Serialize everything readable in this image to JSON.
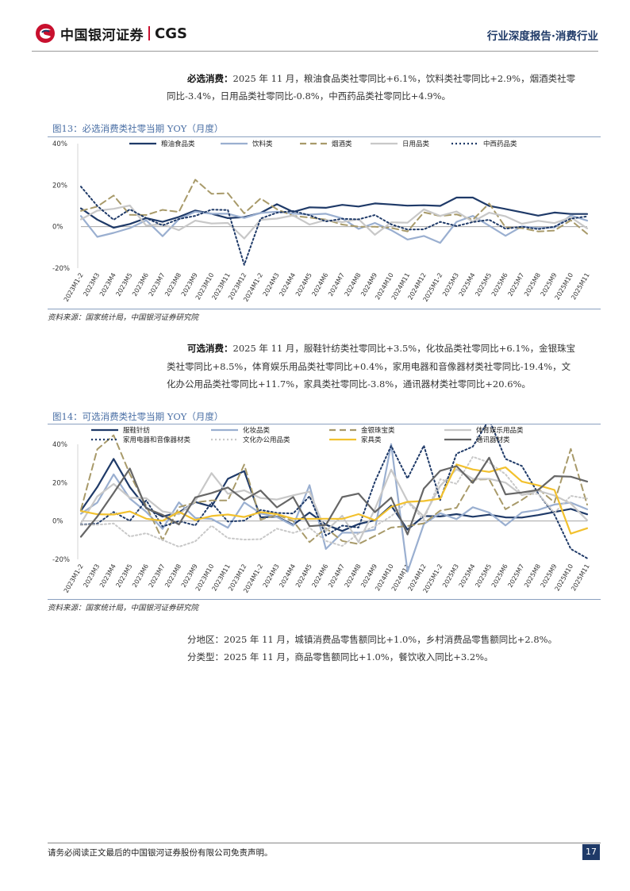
{
  "header": {
    "brand_cn": "中国银河证券",
    "brand_en": "CGS",
    "report_tag": "行业深度报告·消费行业"
  },
  "section1": {
    "bold": "必选消费：",
    "line1": "2025 年 11 月，粮油食品类社零同比+6.1%，饮料类社零同比+2.9%，烟酒类社零",
    "line2": "同比-3.4%，日用品类社零同比-0.8%，中西药品类社零同比+4.9%。"
  },
  "fig13": {
    "title": "图13：必选消费类社零当期 YOY（月度）",
    "source": "资料来源：国家统计局，中国银河证券研究院"
  },
  "section2": {
    "bold": "可选消费：",
    "line1": "2025 年 11 月，服鞋针纺类社零同比+3.5%，化妆品类社零同比+6.1%，金银珠宝",
    "line2": "类社零同比+8.5%，体育娱乐用品类社零同比+0.4%，家用电器和音像器材类社零同比-19.4%，文",
    "line3": "化办公用品类社零同比+11.7%，家具类社零同比-3.8%，通讯器材类社零同比+20.6%。"
  },
  "fig14": {
    "title": "图14：可选消费类社零当期 YOY（月度）",
    "source": "资料来源：国家统计局，中国银河证券研究院"
  },
  "section3": {
    "line1": "分地区：2025 年 11 月，城镇消费品零售额同比+1.0%，乡村消费品零售额同比+2.8%。",
    "line2": "分类型：2025 年 11 月，商品零售额同比+1.0%，餐饮收入同比+3.2%。"
  },
  "footer": {
    "disclaimer": "请务必阅读正文最后的中国银河证券股份有限公司免责声明。",
    "page": "17"
  },
  "chart_data": [
    {
      "type": "line",
      "title": "图13：必选消费类社零当期 YOY（月度）",
      "ylim": [
        -20,
        40
      ],
      "yticks": [
        "40%",
        "20%",
        "0%",
        "-20%"
      ],
      "categories": [
        "2023M1-2",
        "2023M3",
        "2023M4",
        "2023M5",
        "2023M6",
        "2023M7",
        "2023M8",
        "2023M9",
        "2023M10",
        "2023M11",
        "2023M12",
        "2024M1-2",
        "2024M3",
        "2024M4",
        "2024M5",
        "2024M6",
        "2024M7",
        "2024M8",
        "2024M9",
        "2024M10",
        "2024M11",
        "2024M12",
        "2025M1-2",
        "2025M3",
        "2025M4",
        "2025M5",
        "2025M6",
        "2025M7",
        "2025M8",
        "2025M9",
        "2025M10",
        "2025M11"
      ],
      "series": [
        {
          "name": "粮油食品类",
          "color": "#1f3a68",
          "dash": "solid",
          "values": [
            8.8,
            3.4,
            -0.5,
            1.3,
            4.1,
            2.3,
            4.7,
            7.8,
            6.2,
            4.1,
            4.6,
            6.6,
            10.8,
            7.1,
            9.3,
            9.1,
            10.5,
            9.7,
            11.2,
            10.7,
            10.1,
            10.3,
            10.0,
            14.0,
            14.0,
            10.0,
            8.5,
            6.9,
            5.3,
            6.8,
            6.1,
            6.1
          ]
        },
        {
          "name": "饮料类",
          "color": "#9aafd0",
          "dash": "solid",
          "values": [
            5.1,
            -4.9,
            -3.0,
            -0.7,
            3.1,
            -4.6,
            3.6,
            7.2,
            6.2,
            6.2,
            4.2,
            6.6,
            7.2,
            6.3,
            5.8,
            6.2,
            4.0,
            -1.1,
            1.8,
            -1.7,
            -6.2,
            -4.5,
            -7.8,
            2.3,
            5.2,
            0.5,
            -4.4,
            0.1,
            -0.7,
            -0.4,
            5.4,
            2.9
          ]
        },
        {
          "name": "烟酒类",
          "color": "#a89a6a",
          "dash": "8,5",
          "values": [
            7.6,
            9.7,
            15.0,
            5.7,
            5.6,
            8.1,
            7.1,
            22.6,
            15.8,
            16.1,
            6.4,
            13.6,
            8.4,
            5.2,
            4.4,
            3.4,
            1.0,
            0.0,
            0.0,
            -0.6,
            -2.3,
            6.9,
            5.1,
            5.9,
            3.3,
            11.2,
            -0.3,
            -0.7,
            -2.3,
            -1.9,
            3.1,
            -3.4
          ]
        },
        {
          "name": "日用品类",
          "color": "#c8c8c8",
          "dash": "solid",
          "values": [
            3.5,
            7.7,
            8.6,
            10.2,
            0.5,
            1.2,
            -1.7,
            2.9,
            1.5,
            1.8,
            -5.7,
            3.3,
            3.9,
            5.4,
            1.0,
            3.2,
            2.2,
            3.6,
            -3.9,
            2.1,
            1.9,
            8.3,
            5.2,
            7.3,
            2.4,
            6.7,
            5.0,
            1.4,
            2.8,
            1.7,
            4.5,
            -0.8
          ]
        },
        {
          "name": "中西药品类",
          "color": "#1f3a68",
          "dash": "2,3",
          "values": [
            19.3,
            10.0,
            3.3,
            8.3,
            4.1,
            0.6,
            3.7,
            5.2,
            8.2,
            8.0,
            -18.4,
            3.9,
            6.7,
            7.5,
            5.5,
            2.5,
            3.8,
            3.5,
            5.6,
            1.1,
            -1.4,
            -1.3,
            2.3,
            0.3,
            2.2,
            3.3,
            -1.0,
            0.0,
            -1.2,
            0.0,
            3.9,
            4.9
          ]
        }
      ]
    },
    {
      "type": "line",
      "title": "图14：可选消费类社零当期 YOY（月度）",
      "ylim": [
        -20,
        40
      ],
      "yticks": [
        "40%",
        "20%",
        "0%",
        "-20%"
      ],
      "categories": [
        "2023M1-2",
        "2023M3",
        "2023M4",
        "2023M5",
        "2023M6",
        "2023M7",
        "2023M8",
        "2023M9",
        "2023M10",
        "2023M11",
        "2023M12",
        "2024M1-2",
        "2024M3",
        "2024M4",
        "2024M5",
        "2024M6",
        "2024M7",
        "2024M8",
        "2024M9",
        "2024M10",
        "2024M11",
        "2024M12",
        "2025M1-2",
        "2025M3",
        "2025M4",
        "2025M5",
        "2025M6",
        "2025M7",
        "2025M8",
        "2025M9",
        "2025M10",
        "2025M11"
      ],
      "series": [
        {
          "name": "服鞋针纺",
          "color": "#1f3a68",
          "dash": "solid",
          "values": [
            5.4,
            17.7,
            32.4,
            17.6,
            6.9,
            2.3,
            4.5,
            9.9,
            7.5,
            22.0,
            26.0,
            1.9,
            2.3,
            -2.0,
            4.4,
            -1.9,
            -5.2,
            -1.6,
            0.4,
            8.0,
            -4.5,
            2.6,
            2.4,
            3.6,
            2.2,
            3.3,
            1.9,
            1.8,
            3.1,
            4.7,
            6.3,
            3.5
          ]
        },
        {
          "name": "化妆品类",
          "color": "#9aafd0",
          "dash": "solid",
          "values": [
            3.8,
            9.6,
            24.3,
            11.7,
            4.8,
            -4.1,
            9.7,
            1.6,
            1.1,
            -3.5,
            9.7,
            4.0,
            2.1,
            -2.4,
            18.7,
            -14.6,
            -6.1,
            -6.1,
            -4.5,
            40.1,
            -26.4,
            -1.6,
            4.1,
            1.0,
            7.2,
            4.4,
            -2.3,
            4.5,
            5.8,
            8.6,
            9.6,
            6.1
          ]
        },
        {
          "name": "金银珠宝类",
          "color": "#a89a6a",
          "dash": "8,5",
          "values": [
            5.9,
            37.4,
            44.7,
            24.4,
            7.8,
            -10.0,
            7.2,
            9.7,
            10.7,
            10.7,
            29.4,
            0.7,
            3.2,
            0.0,
            -11.0,
            -3.7,
            -10.4,
            -12.0,
            -7.8,
            -3.4,
            -2.6,
            -1.2,
            5.4,
            6.9,
            21.5,
            21.8,
            6.1,
            11.0,
            16.8,
            9.7,
            37.6,
            8.5
          ]
        },
        {
          "name": "体育娱乐用品类",
          "color": "#c8c8c8",
          "dash": "solid",
          "values": [
            -1.2,
            12.8,
            19.3,
            12.1,
            11.9,
            5.0,
            3.5,
            10.4,
            25.0,
            14.2,
            16.0,
            12.0,
            11.2,
            13.4,
            15.3,
            -5.3,
            2.7,
            -11.0,
            6.2,
            26.8,
            10.4,
            2.4,
            18.3,
            27.0,
            22.0,
            22.0,
            20.0,
            13.5,
            15.8,
            13.3,
            9.1,
            0.4
          ]
        },
        {
          "name": "家用电器和音像器材类",
          "color": "#1f3a68",
          "dash": "2,3",
          "values": [
            -1.9,
            -1.4,
            4.7,
            0.1,
            10.8,
            -2.9,
            0.0,
            -2.3,
            9.6,
            -0.3,
            0.2,
            5.8,
            4.2,
            3.9,
            12.9,
            -7.6,
            -2.4,
            -3.4,
            20.5,
            39.2,
            22.2,
            39.3,
            10.9,
            35.1,
            38.8,
            53.0,
            32.4,
            28.7,
            14.3,
            3.3,
            -14.6,
            -19.4
          ]
        },
        {
          "name": "文化办公用品类",
          "color": "#c8c8c8",
          "dash": "2,3",
          "values": [
            -2.2,
            -1.9,
            -1.3,
            -8.1,
            -6.4,
            -9.9,
            -13.4,
            -10.6,
            -2.4,
            -8.9,
            -9.7,
            -9.5,
            -4.0,
            -6.2,
            -3.5,
            -10.4,
            -13.0,
            -6.5,
            -2.7,
            2.5,
            9.9,
            0.7,
            21.8,
            19.4,
            33.5,
            30.5,
            24.4,
            13.8,
            14.2,
            4.2,
            13.1,
            11.7
          ]
        },
        {
          "name": "家具类",
          "color": "#f2c12e",
          "dash": "solid",
          "values": [
            5.2,
            3.5,
            3.4,
            5.0,
            1.2,
            0.1,
            4.8,
            0.5,
            2.6,
            3.4,
            2.1,
            4.6,
            3.6,
            1.2,
            1.1,
            1.2,
            1.1,
            3.6,
            0.4,
            7.4,
            10.0,
            10.4,
            11.7,
            29.5,
            26.9,
            25.6,
            28.0,
            20.6,
            18.6,
            16.2,
            -6.6,
            -3.8
          ]
        },
        {
          "name": "通讯器材类",
          "color": "#666666",
          "dash": "solid",
          "values": [
            -8.2,
            2.3,
            14.6,
            27.4,
            6.6,
            3.2,
            -1.8,
            12.3,
            14.6,
            17.5,
            11.0,
            15.9,
            7.1,
            12.5,
            -2.7,
            -2.1,
            12.5,
            14.3,
            4.6,
            12.2,
            -7.0,
            16.9,
            26.2,
            28.6,
            19.9,
            33.0,
            13.9,
            14.9,
            16.2,
            23.4,
            23.1,
            20.6
          ]
        }
      ]
    }
  ]
}
